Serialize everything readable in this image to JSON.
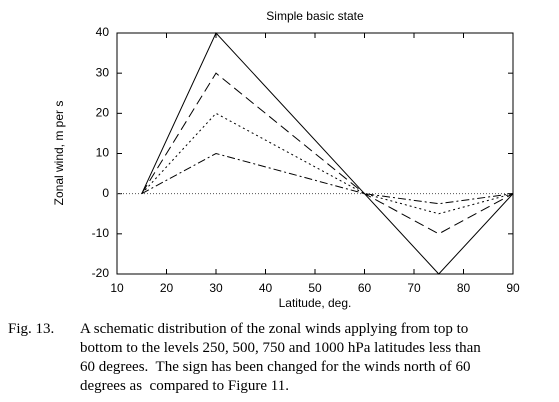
{
  "chart_data": {
    "type": "line",
    "title": "Simple basic state",
    "xlabel": "Latitude, deg.",
    "ylabel": "Zonal wind, m per s",
    "x": [
      15,
      30,
      60,
      75,
      90
    ],
    "series": [
      {
        "color": "#000000",
        "dash": "solid",
        "values": [
          0,
          40,
          0,
          -20,
          0
        ]
      },
      {
        "color": "#000000",
        "dash": "dashed",
        "values": [
          0,
          30,
          0,
          -10,
          0
        ]
      },
      {
        "color": "#000000",
        "dash": "dotted",
        "values": [
          0,
          20,
          0,
          -5,
          0
        ]
      },
      {
        "color": "#000000",
        "dash": "dashdot",
        "values": [
          0,
          10,
          0,
          -2.5,
          0
        ]
      }
    ],
    "xlim": [
      10,
      90
    ],
    "xticks": [
      10,
      20,
      30,
      40,
      50,
      60,
      70,
      80,
      90
    ],
    "ylim": [
      -20,
      40
    ],
    "yticks": [
      -20,
      -10,
      0,
      10,
      20,
      30,
      40
    ],
    "zero_line": true
  },
  "caption": {
    "label": "Fig. 13.",
    "lines": [
      "A schematic distribution of the zonal winds applying from top to",
      "bottom to the levels 250, 500, 750 and 1000 hPa latitudes less than",
      "60 degrees.  The sign has been changed for the winds north of 60",
      "degrees as  compared to Figure 11."
    ]
  }
}
